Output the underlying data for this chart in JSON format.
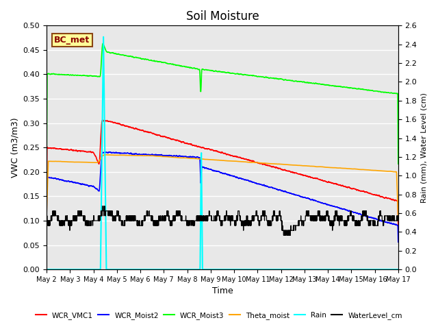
{
  "title": "Soil Moisture",
  "xlabel": "Time",
  "ylabel_left": "VWC (m3/m3)",
  "ylabel_right": "Rain (mm), Water Level (cm)",
  "ylim_left": [
    0.0,
    0.5
  ],
  "ylim_right": [
    0.0,
    2.6
  ],
  "yticks_left": [
    0.0,
    0.05,
    0.1,
    0.15,
    0.2,
    0.25,
    0.3,
    0.35,
    0.4,
    0.45,
    0.5
  ],
  "yticks_right": [
    0.0,
    0.2,
    0.4,
    0.6,
    0.8,
    1.0,
    1.2,
    1.4,
    1.6,
    1.8,
    2.0,
    2.2,
    2.4,
    2.6
  ],
  "bg_color": "#e8e8e8",
  "legend_labels": [
    "WCR_VMC1",
    "WCR_Moist2",
    "WCR_Moist3",
    "Theta_moist",
    "Rain",
    "WaterLevel_cm"
  ],
  "legend_colors": [
    "red",
    "blue",
    "green",
    "orange",
    "cyan",
    "black"
  ],
  "annotation_text": "BC_met",
  "annotation_color": "#8B0000",
  "annotation_bg": "#FFFF99",
  "annotation_border": "#8B4513",
  "line_colors": {
    "WCR_VMC1": "red",
    "WCR_Moist2": "blue",
    "WCR_Moist3": "lime",
    "Theta_moist": "orange",
    "Rain": "cyan",
    "WaterLevel_cm": "black"
  }
}
